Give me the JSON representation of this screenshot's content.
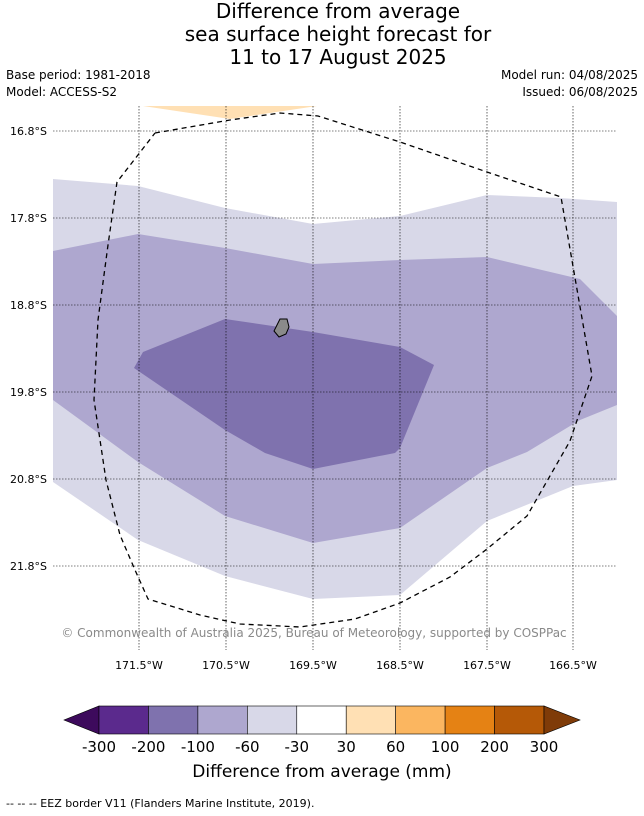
{
  "title": {
    "line1": "Difference from average",
    "line2": "sea surface height forecast for",
    "line3": "11 to 17 August 2025"
  },
  "meta": {
    "base_period": "Base period: 1981-2018",
    "model": "Model: ACCESS-S2",
    "model_run": "Model run: 04/08/2025",
    "issued": "Issued: 06/08/2025"
  },
  "map": {
    "lat_labels": [
      "16.8°S",
      "17.8°S",
      "18.8°S",
      "19.8°S",
      "20.8°S",
      "21.8°S"
    ],
    "lon_labels": [
      "171.5°W",
      "170.5°W",
      "169.5°W",
      "168.5°W",
      "167.5°W",
      "166.5°W"
    ],
    "copyright": "© Commonwealth of Australia 2025, Bureau of Meteorology, supported by COSPPac"
  },
  "colorbar": {
    "ticks": [
      "-300",
      "-200",
      "-100",
      "-60",
      "-30",
      "30",
      "60",
      "100",
      "200",
      "300"
    ],
    "colors": [
      "#5b2a8d",
      "#7f72ae",
      "#aea7cf",
      "#d8d8e8",
      "#ffffff",
      "#ffe0b4",
      "#fbb660",
      "#e58214",
      "#b55907"
    ],
    "under_color": "#3d0a5c",
    "over_color": "#7f3b08",
    "label": "Difference from average (mm)"
  },
  "footnote": "--  --  -- EEZ border V11 (Flanders Marine Institute, 2019)."
}
